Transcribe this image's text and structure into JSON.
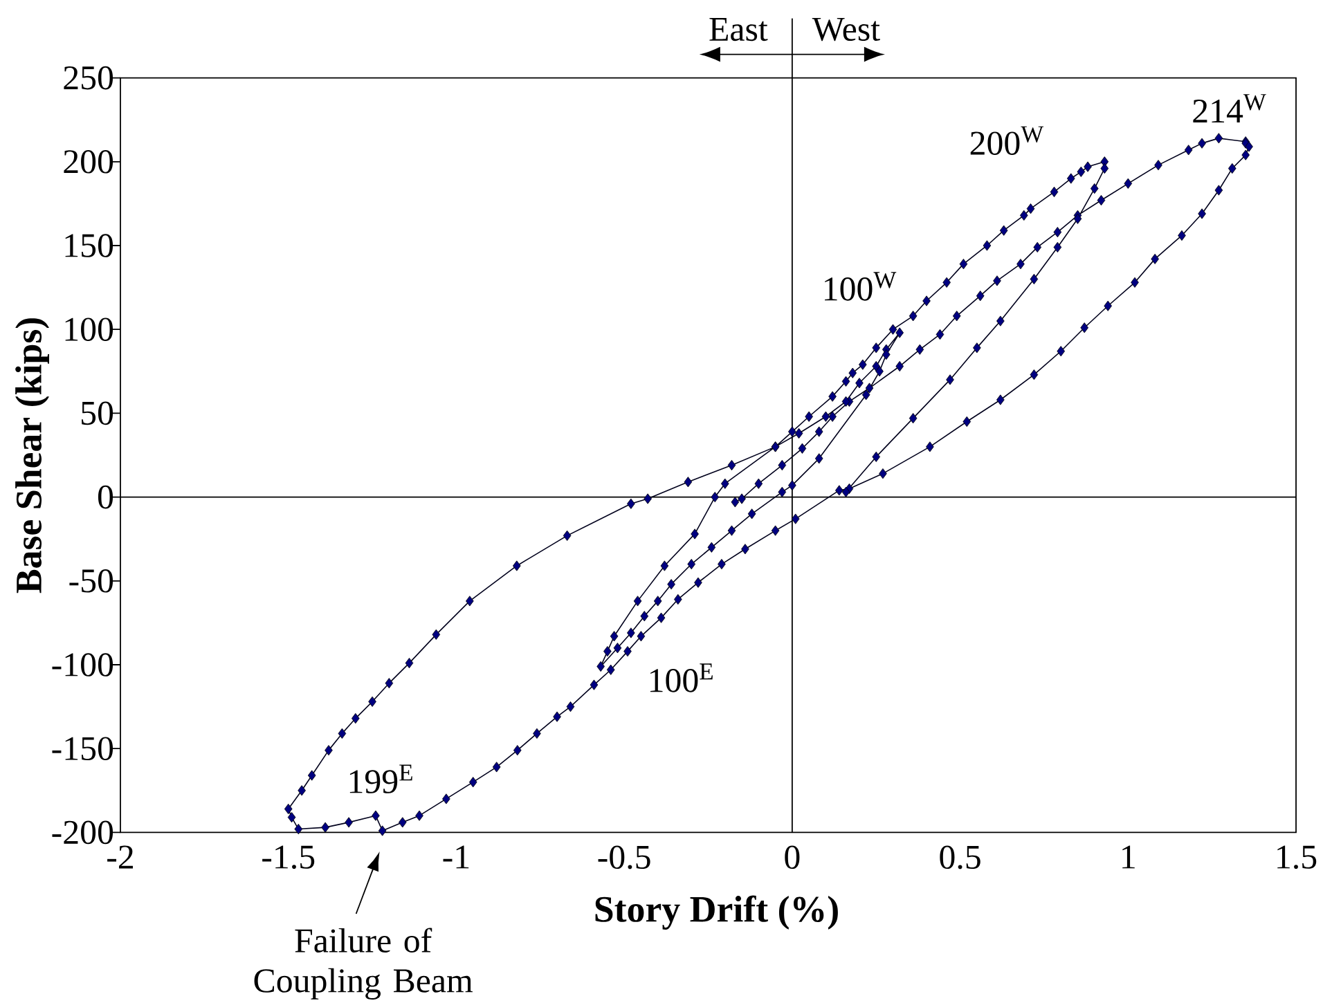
{
  "chart_data": {
    "type": "line",
    "xlabel": "Story Drift (%)",
    "ylabel": "Base Shear (kips)",
    "color": "#000080",
    "marker": "diamond",
    "line_style": "solid",
    "xlim": [
      -2,
      1.5
    ],
    "ylim": [
      -200,
      250
    ],
    "xticks": [
      -2,
      -1.5,
      -1,
      -0.5,
      0,
      0.5,
      1,
      1.5
    ],
    "yticks": [
      -200,
      -150,
      -100,
      -50,
      0,
      50,
      100,
      150,
      200,
      250
    ],
    "x": [
      -0.17,
      -0.15,
      -0.1,
      -0.03,
      0.03,
      0.08,
      0.12,
      0.17,
      0.23,
      0.32,
      0.38,
      0.44,
      0.49,
      0.56,
      0.61,
      0.68,
      0.73,
      0.79,
      0.85,
      0.92,
      1.0,
      1.09,
      1.18,
      1.22,
      1.27,
      1.35,
      1.35,
      1.36,
      1.35,
      1.31,
      1.27,
      1.22,
      1.16,
      1.08,
      1.02,
      0.94,
      0.87,
      0.8,
      0.72,
      0.62,
      0.52,
      0.41,
      0.27,
      0.17,
      0.14,
      0.01,
      -0.05,
      -0.14,
      -0.21,
      -0.28,
      -0.34,
      -0.39,
      -0.45,
      -0.49,
      -0.54,
      -0.59,
      -0.66,
      -0.7,
      -0.76,
      -0.818,
      -0.88,
      -0.95,
      -1.03,
      -1.11,
      -1.16,
      -1.22,
      -1.24,
      -1.32,
      -1.39,
      -1.47,
      -1.49,
      -1.5,
      -1.46,
      -1.43,
      -1.38,
      -1.34,
      -1.3,
      -1.25,
      -1.2,
      -1.14,
      -1.06,
      -0.96,
      -0.82,
      -0.67,
      -0.48,
      -0.43,
      -0.31,
      -0.18,
      -0.05,
      0.02,
      0.1,
      0.16,
      0.2,
      0.25,
      0.28,
      0.32,
      0.28,
      0.26,
      0.22,
      0.08,
      0.0,
      -0.03,
      -0.12,
      -0.18,
      -0.24,
      -0.3,
      -0.36,
      -0.4,
      -0.44,
      -0.48,
      -0.52,
      -0.57,
      -0.55,
      -0.53,
      -0.46,
      -0.38,
      -0.29,
      -0.23,
      -0.2,
      -0.05,
      0.0,
      0.05,
      0.12,
      0.16,
      0.18,
      0.21,
      0.25,
      0.3,
      0.36,
      0.4,
      0.46,
      0.51,
      0.58,
      0.63,
      0.69,
      0.71,
      0.78,
      0.83,
      0.86,
      0.88,
      0.93,
      0.93,
      0.9,
      0.85,
      0.79,
      0.72,
      0.62,
      0.55,
      0.47,
      0.36,
      0.25,
      0.16
    ],
    "values": [
      -3,
      -1,
      8,
      19,
      29,
      39,
      48,
      57,
      65,
      78,
      88,
      97,
      108,
      120,
      129,
      139,
      149,
      158,
      168,
      177,
      187,
      198,
      207,
      211,
      214,
      212,
      211,
      209,
      204,
      196,
      183,
      169,
      156,
      142,
      128,
      114,
      101,
      87,
      73,
      58,
      45,
      30,
      14,
      5,
      4,
      -13,
      -20,
      -31,
      -40,
      -51,
      -61,
      -72,
      -83,
      -92,
      -103,
      -112,
      -125,
      -131,
      -141,
      -151,
      -161,
      -170,
      -180,
      -190,
      -194,
      -199,
      -190,
      -194,
      -197,
      -198,
      -191,
      -186,
      -175,
      -166,
      -151,
      -141,
      -132,
      -122,
      -111,
      -99,
      -82,
      -62,
      -41,
      -23,
      -4,
      -1,
      9,
      19,
      30,
      38,
      48,
      57,
      68,
      78,
      88,
      98,
      85,
      75,
      61,
      23,
      7,
      3,
      -10,
      -20,
      -30,
      -40,
      -52,
      -62,
      -71,
      -81,
      -90,
      -101,
      -92,
      -83,
      -62,
      -41,
      -22,
      0,
      8,
      30,
      39,
      48,
      60,
      69,
      74,
      79,
      89,
      100,
      108,
      117,
      128,
      139,
      150,
      159,
      168,
      172,
      182,
      190,
      194,
      197,
      200,
      196,
      184,
      166,
      149,
      130,
      105,
      89,
      70,
      47,
      24,
      3
    ],
    "annotations": [
      "East",
      "West",
      "100$^{W}$",
      "200$^{W}$",
      "214$^{W}$",
      "100$^{E}$",
      "199$^{E}$",
      {
        "text": "Failure of Coupling Beam",
        "x": -1.22,
        "y": -199
      }
    ]
  }
}
